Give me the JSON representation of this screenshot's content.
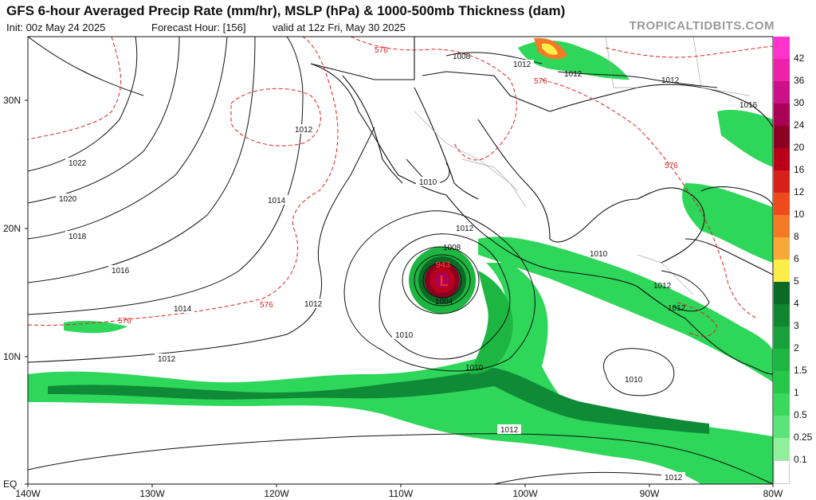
{
  "header": {
    "title": "GFS 6-hour Averaged Precip Rate (mm/hr), MSLP (hPa) & 1000-500mb Thickness (dam)",
    "init": "Init: 00z May 24 2025",
    "forecast_hour": "Forecast Hour: [156]",
    "valid": "valid at 12z Fri, May 30 2025",
    "brand": "TROPICALTIDBITS.COM"
  },
  "lat_labels": [
    "30N",
    "20N",
    "10N",
    "EQ"
  ],
  "lon_labels": [
    "140W",
    "130W",
    "120W",
    "110W",
    "100W",
    "90W",
    "80W"
  ],
  "isobar_labels": [
    "1022",
    "1020",
    "1018",
    "1016",
    "1014",
    "1012",
    "1012",
    "1014",
    "1012",
    "1012",
    "1010",
    "1008",
    "1004",
    "1010",
    "1010",
    "1012",
    "1008",
    "1012",
    "1012",
    "1016",
    "1012",
    "1010",
    "1010",
    "1012",
    "1012",
    "1012"
  ],
  "thickness_labels": [
    "576",
    "576",
    "576",
    "576",
    "576"
  ],
  "low_center": {
    "symbol": "L",
    "pressure": "943"
  },
  "colorbar": {
    "labels": [
      "42",
      "36",
      "30",
      "24",
      "20",
      "16",
      "12",
      "10",
      "8",
      "6",
      "5",
      "4",
      "3",
      "2",
      "1.5",
      "1",
      "0.5",
      "0.25",
      "0.1"
    ],
    "colors": [
      "#ff33cc",
      "#ee22aa",
      "#cc1188",
      "#aa0055",
      "#8b0022",
      "#b80018",
      "#d8201a",
      "#ee4a1c",
      "#f47a28",
      "#f7a838",
      "#fcee48",
      "#0b6b26",
      "#118530",
      "#18a03a",
      "#1cb640",
      "#26c84a",
      "#3ad85c",
      "#5ae47a",
      "#90ef9a"
    ]
  },
  "colors": {
    "ocean": "#ffffff",
    "land": "#ffffff",
    "coast": "#111111",
    "isobar": "#111111",
    "thickness": "#dd2222",
    "precip_light": "#2ed65a",
    "precip_heavy": "#0f8a36",
    "border": "#aaaaaa"
  }
}
